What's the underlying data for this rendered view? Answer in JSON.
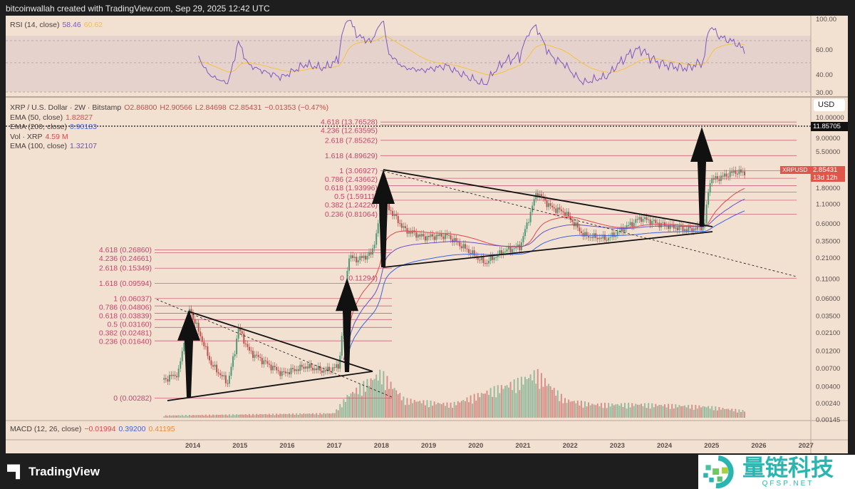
{
  "header": "bitcoinwallah created with TradingView.com, Sep 29, 2025 12:42 UTC",
  "rsi_legend": {
    "label": "RSI (14, close)",
    "v1": "58.46",
    "v2": "60.62"
  },
  "main_legend": {
    "symbol": "XRP / U.S. Dollar · 2W · Bitstamp",
    "o": "O2.86800",
    "h": "H2.90566",
    "l": "L2.84698",
    "c": "C2.85431",
    "chg": "−0.01353 (−0.47%)",
    "ema50": {
      "label": "EMA (50, close)",
      "value": "1.82827"
    },
    "ema200": {
      "label": "EMA (200, close)",
      "value": "0.90183"
    },
    "vol": {
      "label": "Vol · XRP",
      "value": "4.59 M"
    },
    "ema100": {
      "label": "EMA (100, close)",
      "value": "1.32107"
    }
  },
  "macd_legend": {
    "label": "MACD (12, 26, close)",
    "v1": "−0.01994",
    "v2": "0.39200",
    "v3": "0.41195"
  },
  "currency": "USD",
  "price_tags": {
    "dotted": "11.85705",
    "symbol": "XRPUSD",
    "last": "2.85431",
    "countdown": "13d 12h"
  },
  "logo": "TradingView",
  "watermark": {
    "cn": "量链科技",
    "en": "QFSP.NET"
  },
  "colors": {
    "up": "#4f9a77",
    "down": "#c0504f",
    "ema50": "#e0474c",
    "ema100": "#6a4fc8",
    "ema200": "#3f63e0",
    "fib": "#c2456e",
    "rsi": "#7e57c2",
    "rsima": "#f5c242"
  },
  "chart_data": {
    "type": "candlestick",
    "title": "XRP / U.S. Dollar · 2W · Bitstamp",
    "yscale": "log",
    "y_ticks": [
      "10.00000",
      "9.00000",
      "5.50000",
      "1.80000",
      "1.10000",
      "0.60000",
      "0.35000",
      "0.21000",
      "0.11000",
      "0.06000",
      "0.03500",
      "0.02100",
      "0.01200",
      "0.00700",
      "0.00400",
      "0.00240",
      "0.00145"
    ],
    "y_tick_values": [
      10,
      9,
      5.5,
      1.8,
      1.1,
      0.6,
      0.35,
      0.21,
      0.11,
      0.06,
      0.035,
      0.021,
      0.012,
      0.007,
      0.004,
      0.0024,
      0.00145
    ],
    "x_ticks": [
      "2014",
      "2015",
      "2016",
      "2017",
      "2018",
      "2019",
      "2020",
      "2021",
      "2022",
      "2023",
      "2024",
      "2025",
      "2026",
      "2027"
    ],
    "rsi_ticks": [
      "100.00",
      "60.00",
      "40.00",
      "30.00"
    ],
    "price_path": [
      [
        2013.4,
        0.005
      ],
      [
        2013.7,
        0.006
      ],
      [
        2013.85,
        0.02
      ],
      [
        2013.93,
        0.045
      ],
      [
        2014.1,
        0.025
      ],
      [
        2014.4,
        0.008
      ],
      [
        2014.75,
        0.0045
      ],
      [
        2014.9,
        0.012
      ],
      [
        2014.97,
        0.025
      ],
      [
        2015.2,
        0.012
      ],
      [
        2015.6,
        0.008
      ],
      [
        2015.9,
        0.006
      ],
      [
        2016.4,
        0.0075
      ],
      [
        2016.8,
        0.0065
      ],
      [
        2017.1,
        0.0075
      ],
      [
        2017.22,
        0.035
      ],
      [
        2017.3,
        0.22
      ],
      [
        2017.5,
        0.2
      ],
      [
        2017.8,
        0.24
      ],
      [
        2017.95,
        0.6
      ],
      [
        2018.05,
        2.3
      ],
      [
        2018.15,
        1.0
      ],
      [
        2018.5,
        0.5
      ],
      [
        2018.9,
        0.4
      ],
      [
        2019.4,
        0.42
      ],
      [
        2019.9,
        0.25
      ],
      [
        2020.2,
        0.18
      ],
      [
        2020.6,
        0.26
      ],
      [
        2020.95,
        0.3
      ],
      [
        2021.3,
        1.6
      ],
      [
        2021.6,
        1.0
      ],
      [
        2021.9,
        0.85
      ],
      [
        2022.3,
        0.42
      ],
      [
        2022.8,
        0.38
      ],
      [
        2023.5,
        0.72
      ],
      [
        2023.9,
        0.6
      ],
      [
        2024.5,
        0.5
      ],
      [
        2024.85,
        0.55
      ],
      [
        2024.97,
        2.3
      ],
      [
        2025.2,
        2.5
      ],
      [
        2025.5,
        3.0
      ],
      [
        2025.74,
        2.85
      ]
    ],
    "volume_path": [
      [
        2013.4,
        0.05
      ],
      [
        2017.0,
        0.1
      ],
      [
        2017.3,
        0.5
      ],
      [
        2018.0,
        1.0
      ],
      [
        2018.5,
        0.4
      ],
      [
        2019.5,
        0.3
      ],
      [
        2020.3,
        0.6
      ],
      [
        2020.9,
        0.8
      ],
      [
        2021.3,
        1.0
      ],
      [
        2021.9,
        0.4
      ],
      [
        2022.5,
        0.3
      ],
      [
        2023.5,
        0.3
      ],
      [
        2024.9,
        0.25
      ],
      [
        2025.74,
        0.15
      ]
    ],
    "fib_sets": [
      {
        "levels": [
          [
            "4.618 (13.76528)",
            13.76528
          ],
          [
            "4.236 (12.63595)",
            12.63595
          ],
          [
            "2.618 (7.85262)",
            7.85262
          ],
          [
            "1.618 (4.89629)",
            4.89629
          ],
          [
            "1 (3.06927)",
            3.06927
          ],
          [
            "0.786 (2.43662)",
            2.43662
          ],
          [
            "0.618 (1.93996)",
            1.93996
          ],
          [
            "0.5 (1.59111)",
            1.59111
          ],
          [
            "0.382 (1.24226)",
            1.24226
          ],
          [
            "0.236 (0.81064)",
            0.81064
          ],
          [
            "0 (0.11294)",
            0.11294
          ]
        ]
      },
      {
        "levels": [
          [
            "4.618 (0.26860)",
            0.2686
          ],
          [
            "4.236 (0.24661)",
            0.24661
          ],
          [
            "2.618 (0.15349)",
            0.15349
          ],
          [
            "1.618 (0.09594)",
            0.09594
          ],
          [
            "1 (0.06037)",
            0.06037
          ],
          [
            "0.786 (0.04806)",
            0.04806
          ],
          [
            "0.618 (0.03839)",
            0.03839
          ],
          [
            "0.5 (0.03160)",
            0.0316
          ],
          [
            "0.382 (0.02481)",
            0.02481
          ],
          [
            "0.236 (0.01640)",
            0.0164
          ],
          [
            "0 (0.00282)",
            0.00282
          ]
        ]
      }
    ]
  }
}
